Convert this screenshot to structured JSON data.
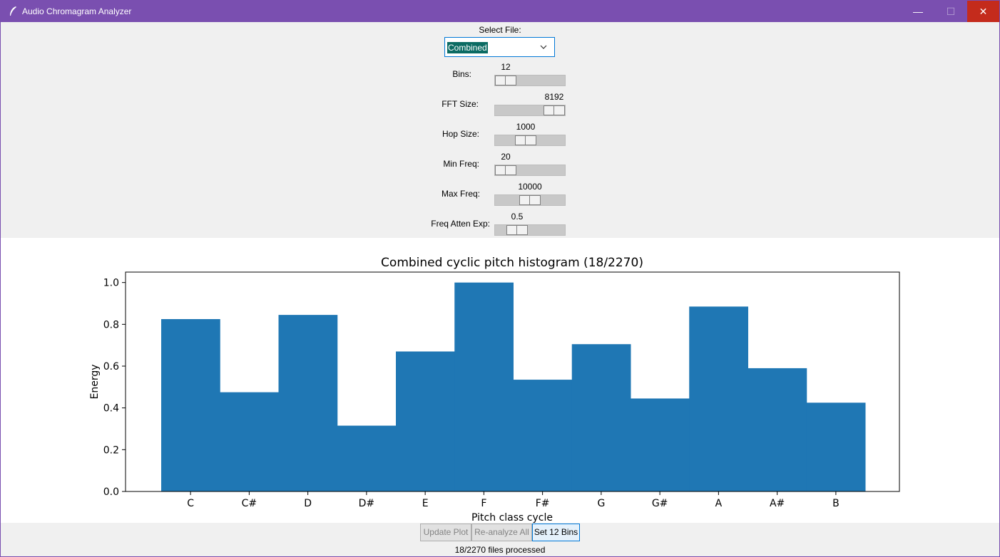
{
  "window": {
    "title": "Audio Chromagram Analyzer",
    "minimize_glyph": "—",
    "maximize_glyph": "☐",
    "close_glyph": "✕"
  },
  "controls": {
    "select_file_label": "Select File:",
    "selected_file": "Combined",
    "sliders": [
      {
        "label": "Bins:",
        "value": "12",
        "fraction": 0.0
      },
      {
        "label": "FFT Size:",
        "value": "8192",
        "fraction": 1.0
      },
      {
        "label": "Hop Size:",
        "value": "1000",
        "fraction": 0.41
      },
      {
        "label": "Min Freq:",
        "value": "20",
        "fraction": 0.0
      },
      {
        "label": "Max Freq:",
        "value": "10000",
        "fraction": 0.5
      },
      {
        "label": "Freq Atten Exp:",
        "value": "0.5",
        "fraction": 0.24
      }
    ]
  },
  "buttons": {
    "update_plot": "Update Plot",
    "reanalyze_all": "Re-analyze All",
    "set_12_bins": "Set 12 Bins"
  },
  "status": "18/2270 files processed",
  "colors": {
    "titlebar": "#7a4fb0",
    "bar": "#1f77b4",
    "close": "#c42b1c"
  },
  "chart_data": {
    "type": "bar",
    "title": "Combined cyclic pitch histogram (18/2270)",
    "xlabel": "Pitch class cycle",
    "ylabel": "Energy",
    "categories": [
      "C",
      "C#",
      "D",
      "D#",
      "E",
      "F",
      "F#",
      "G",
      "G#",
      "A",
      "A#",
      "B"
    ],
    "values": [
      0.825,
      0.475,
      0.845,
      0.315,
      0.67,
      1.0,
      0.535,
      0.705,
      0.445,
      0.885,
      0.59,
      0.425
    ],
    "yticks": [
      "0.0",
      "0.2",
      "0.4",
      "0.6",
      "0.8",
      "1.0"
    ],
    "ylim": [
      0,
      1.05
    ],
    "grid": false
  }
}
